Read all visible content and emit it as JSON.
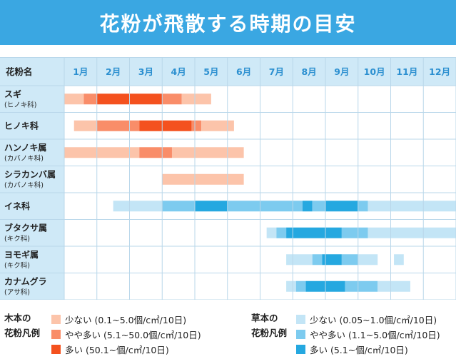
{
  "title": "花粉が飛散する時期の目安",
  "chart_data": {
    "type": "gantt",
    "column_header": "花粉名",
    "months": [
      "1月",
      "2月",
      "3月",
      "4月",
      "5月",
      "6月",
      "7月",
      "8月",
      "9月",
      "10月",
      "11月",
      "12月"
    ],
    "rows": [
      {
        "name": "スギ",
        "sub": "(ヒノキ科)",
        "segments": [
          {
            "start": 1.0,
            "end": 1.6,
            "level": "wood_low"
          },
          {
            "start": 1.6,
            "end": 2.0,
            "level": "wood_mid"
          },
          {
            "start": 2.0,
            "end": 4.0,
            "level": "wood_high"
          },
          {
            "start": 4.0,
            "end": 4.6,
            "level": "wood_mid"
          },
          {
            "start": 4.6,
            "end": 5.5,
            "level": "wood_low"
          }
        ]
      },
      {
        "name": "ヒノキ科",
        "sub": "",
        "segments": [
          {
            "start": 1.3,
            "end": 2.0,
            "level": "wood_low"
          },
          {
            "start": 2.0,
            "end": 3.3,
            "level": "wood_mid"
          },
          {
            "start": 3.3,
            "end": 4.9,
            "level": "wood_high"
          },
          {
            "start": 4.9,
            "end": 5.2,
            "level": "wood_mid"
          },
          {
            "start": 5.2,
            "end": 6.2,
            "level": "wood_low"
          }
        ]
      },
      {
        "name": "ハンノキ属",
        "sub": "(カバノキ科)",
        "segments": [
          {
            "start": 1.0,
            "end": 3.3,
            "level": "wood_low"
          },
          {
            "start": 3.3,
            "end": 4.3,
            "level": "wood_mid"
          },
          {
            "start": 4.3,
            "end": 6.5,
            "level": "wood_low"
          }
        ]
      },
      {
        "name": "シラカンバ属",
        "sub": "(カバノキ科)",
        "segments": [
          {
            "start": 4.0,
            "end": 6.5,
            "level": "wood_low"
          }
        ]
      },
      {
        "name": "イネ科",
        "sub": "",
        "segments": [
          {
            "start": 2.5,
            "end": 4.0,
            "level": "grass_low"
          },
          {
            "start": 4.0,
            "end": 5.0,
            "level": "grass_mid"
          },
          {
            "start": 5.0,
            "end": 6.0,
            "level": "grass_high"
          },
          {
            "start": 6.0,
            "end": 8.3,
            "level": "grass_mid"
          },
          {
            "start": 8.3,
            "end": 8.6,
            "level": "grass_high"
          },
          {
            "start": 8.6,
            "end": 9.0,
            "level": "grass_mid"
          },
          {
            "start": 9.0,
            "end": 10.0,
            "level": "grass_high"
          },
          {
            "start": 10.0,
            "end": 10.3,
            "level": "grass_mid"
          },
          {
            "start": 10.3,
            "end": 13.0,
            "level": "grass_low"
          }
        ]
      },
      {
        "name": "ブタクサ属",
        "sub": "(キク科)",
        "segments": [
          {
            "start": 7.2,
            "end": 7.5,
            "level": "grass_low"
          },
          {
            "start": 7.5,
            "end": 7.8,
            "level": "grass_mid"
          },
          {
            "start": 7.8,
            "end": 9.5,
            "level": "grass_high"
          },
          {
            "start": 9.5,
            "end": 10.3,
            "level": "grass_mid"
          },
          {
            "start": 10.3,
            "end": 13.0,
            "level": "grass_low"
          }
        ]
      },
      {
        "name": "ヨモギ属",
        "sub": "(キク科)",
        "segments": [
          {
            "start": 7.8,
            "end": 8.6,
            "level": "grass_low"
          },
          {
            "start": 8.6,
            "end": 8.9,
            "level": "grass_mid"
          },
          {
            "start": 8.9,
            "end": 9.5,
            "level": "grass_high"
          },
          {
            "start": 9.5,
            "end": 10.0,
            "level": "grass_mid"
          },
          {
            "start": 10.0,
            "end": 10.6,
            "level": "grass_low"
          },
          {
            "start": 11.1,
            "end": 11.4,
            "level": "grass_low"
          }
        ]
      },
      {
        "name": "カナムグラ",
        "sub": "(アサ科)",
        "segments": [
          {
            "start": 7.8,
            "end": 8.1,
            "level": "grass_low"
          },
          {
            "start": 8.1,
            "end": 8.4,
            "level": "grass_mid"
          },
          {
            "start": 8.4,
            "end": 9.6,
            "level": "grass_high"
          },
          {
            "start": 9.6,
            "end": 10.6,
            "level": "grass_mid"
          },
          {
            "start": 10.6,
            "end": 11.6,
            "level": "grass_low"
          }
        ]
      }
    ],
    "colors": {
      "wood_low": "#fcc4aa",
      "wood_mid": "#f98d69",
      "wood_high": "#f4511e",
      "grass_low": "#c3e5f6",
      "grass_mid": "#7dcbef",
      "grass_high": "#25a8e0",
      "header_bg": "#cfe9f7",
      "grid": "#b9d7ea",
      "header_text": "#2b8fd0",
      "label_text": "#222222"
    },
    "legend": {
      "wood": {
        "title_line1": "木本の",
        "title_line2": "花粉凡例",
        "items": [
          {
            "level": "wood_low",
            "label": "少ない (0.1~5.0個/c㎡/10日)"
          },
          {
            "level": "wood_mid",
            "label": "やや多い (5.1~50.0個/c㎡/10日)"
          },
          {
            "level": "wood_high",
            "label": "多い (50.1~個/c㎡/10日)"
          }
        ]
      },
      "grass": {
        "title_line1": "草本の",
        "title_line2": "花粉凡例",
        "items": [
          {
            "level": "grass_low",
            "label": "少ない (0.05~1.0個/c㎡/10日)"
          },
          {
            "level": "grass_mid",
            "label": "やや多い (1.1~5.0個/c㎡/10日)"
          },
          {
            "level": "grass_high",
            "label": "多い (5.1~個/c㎡/10日)"
          }
        ]
      }
    }
  }
}
